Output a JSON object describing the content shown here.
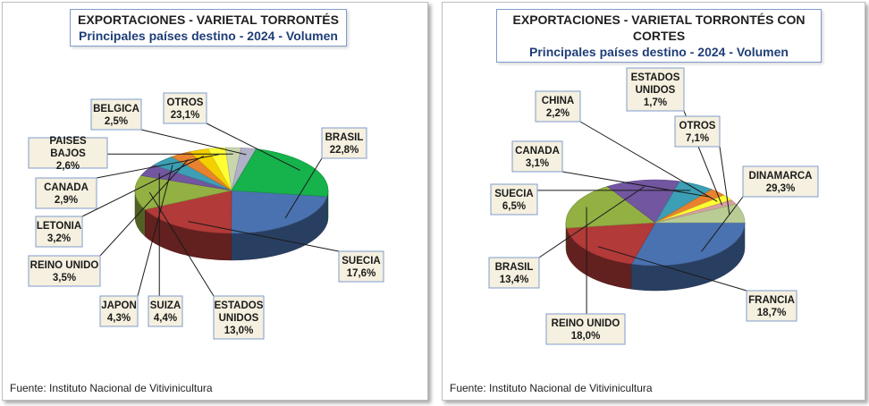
{
  "charts": {
    "left": {
      "title": "EXPORTACIONES  - VARIETAL TORRONTÉS",
      "subtitle": "Principales países  destino - 2024 - Volumen",
      "source": "Fuente: Instituto Nacional de Vitivinicultura"
    },
    "right": {
      "title": "EXPORTACIONES - VARIETAL  TORRONTÉS CON CORTES",
      "subtitle": "Principales países destino  - 2024 - Volumen",
      "source": "Fuente: Instituto Nacional de Vitivinicultura"
    }
  },
  "chart_data": [
    {
      "type": "pie",
      "title": "EXPORTACIONES  - VARIETAL TORRONTÉS",
      "subtitle": "Principales países  destino - 2024 - Volumen",
      "slices": [
        {
          "label": "BRASIL",
          "value": 22.8,
          "display": "22,8%",
          "color": "#4a72b0"
        },
        {
          "label": "SUECIA",
          "value": 17.6,
          "display": "17,6%",
          "color": "#b23a38"
        },
        {
          "label": "ESTADOS UNIDOS",
          "value": 13.0,
          "display": "13,0%",
          "color": "#93b043"
        },
        {
          "label": "SUIZA",
          "value": 4.4,
          "display": "4,4%",
          "color": "#7256a0"
        },
        {
          "label": "JAPON",
          "value": 4.3,
          "display": "4,3%",
          "color": "#3c9fb5"
        },
        {
          "label": "REINO UNIDO",
          "value": 3.5,
          "display": "3,5%",
          "color": "#e8822e"
        },
        {
          "label": "LETONIA",
          "value": 3.2,
          "display": "3,2%",
          "color": "#f5d000"
        },
        {
          "label": "CANADA",
          "value": 2.9,
          "display": "2,9%",
          "color": "#ffff33"
        },
        {
          "label": "PAISES BAJOS",
          "value": 2.6,
          "display": "2,6%",
          "color": "#c9d6ad"
        },
        {
          "label": "BELGICA",
          "value": 2.5,
          "display": "2,5%",
          "color": "#b0b0c8"
        },
        {
          "label": "OTROS",
          "value": 23.1,
          "display": "23,1%",
          "color": "#16b24b"
        }
      ]
    },
    {
      "type": "pie",
      "title": "EXPORTACIONES - VARIETAL  TORRONTÉS CON CORTES",
      "subtitle": "Principales países destino  - 2024 - Volumen",
      "slices": [
        {
          "label": "DINAMARCA",
          "value": 29.3,
          "display": "29,3%",
          "color": "#4a72b0"
        },
        {
          "label": "FRANCIA",
          "value": 18.7,
          "display": "18,7%",
          "color": "#b23a38"
        },
        {
          "label": "REINO UNIDO",
          "value": 18.0,
          "display": "18,0%",
          "color": "#93b043"
        },
        {
          "label": "BRASIL",
          "value": 13.4,
          "display": "13,4%",
          "color": "#7256a0"
        },
        {
          "label": "SUECIA",
          "value": 6.5,
          "display": "6,5%",
          "color": "#3c9fb5"
        },
        {
          "label": "CANADA",
          "value": 3.1,
          "display": "3,1%",
          "color": "#e8822e"
        },
        {
          "label": "CHINA",
          "value": 2.2,
          "display": "2,2%",
          "color": "#ffff33"
        },
        {
          "label": "ESTADOS UNIDOS",
          "value": 1.7,
          "display": "1,7%",
          "color": "#d9a0a0"
        },
        {
          "label": "OTROS",
          "value": 7.1,
          "display": "7,1%",
          "color": "#b8cc94"
        }
      ]
    }
  ]
}
